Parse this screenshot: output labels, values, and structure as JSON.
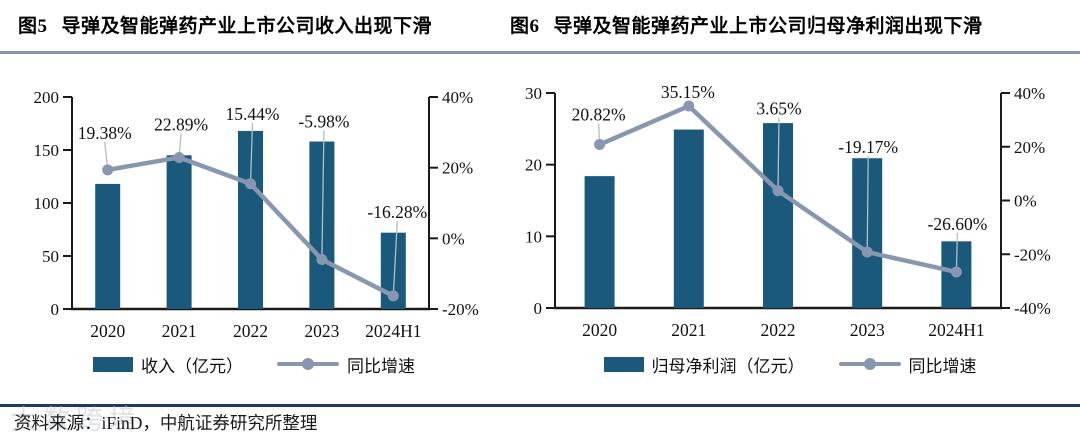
{
  "figure": {
    "source_line": "资料来源：iFinD，中航证券研究所整理",
    "watermark": "大数跨境"
  },
  "colors": {
    "bar": "#1A587C",
    "line": "#8897B0",
    "axis": "#1a1a1a",
    "leader": "#b5bcc6",
    "title_rule": "#8494AC",
    "bottom_rule": "#1F3864"
  },
  "charts": [
    {
      "fig_label": "图5",
      "title": "导弹及智能弹药产业上市公司收入出现下滑",
      "legend": {
        "bar": "收入（亿元）",
        "line": "同比增速"
      }
    },
    {
      "fig_label": "图6",
      "title": "导弹及智能弹药产业上市公司归母净利润出现下滑",
      "legend": {
        "bar": "归母净利润（亿元）",
        "line": "同比增速"
      }
    }
  ],
  "chart_data": [
    {
      "type": "bar+line",
      "title": "图5 导弹及智能弹药产业上市公司收入出现下滑",
      "categories": [
        "2020",
        "2021",
        "2022",
        "2023",
        "2024H1"
      ],
      "series": [
        {
          "name": "收入（亿元）",
          "type": "bar",
          "axis": "left",
          "values": [
            118,
            145,
            168,
            158,
            72
          ]
        },
        {
          "name": "同比增速",
          "type": "line",
          "axis": "right",
          "values_percent": [
            19.38,
            22.89,
            15.44,
            -5.98,
            -16.28
          ],
          "point_labels": [
            "19.38%",
            "22.89%",
            "15.44%",
            "-5.98%",
            "-16.28%"
          ]
        }
      ],
      "left_axis": {
        "min": 0,
        "max": 200,
        "ticks": [
          0,
          50,
          100,
          150,
          200
        ]
      },
      "right_axis": {
        "min": -20,
        "max": 40,
        "ticks": [
          40,
          20,
          0,
          -20
        ],
        "suffix": "%"
      },
      "grid": false,
      "legend_position": "bottom"
    },
    {
      "type": "bar+line",
      "title": "图6 导弹及智能弹药产业上市公司归母净利润出现下滑",
      "categories": [
        "2020",
        "2021",
        "2022",
        "2023",
        "2024H1"
      ],
      "series": [
        {
          "name": "归母净利润（亿元）",
          "type": "bar",
          "axis": "left",
          "values": [
            18.4,
            24.9,
            25.8,
            20.9,
            9.3
          ]
        },
        {
          "name": "同比增速",
          "type": "line",
          "axis": "right",
          "values_percent": [
            20.82,
            35.15,
            3.65,
            -19.17,
            -26.6
          ],
          "point_labels": [
            "20.82%",
            "35.15%",
            "3.65%",
            "-19.17%",
            "-26.60%"
          ]
        }
      ],
      "left_axis": {
        "min": 0,
        "max": 30,
        "ticks": [
          0,
          10,
          20,
          30
        ]
      },
      "right_axis": {
        "min": -40,
        "max": 40,
        "ticks": [
          40,
          20,
          0,
          -20,
          -40
        ],
        "suffix": "%"
      },
      "grid": false,
      "legend_position": "bottom"
    }
  ]
}
